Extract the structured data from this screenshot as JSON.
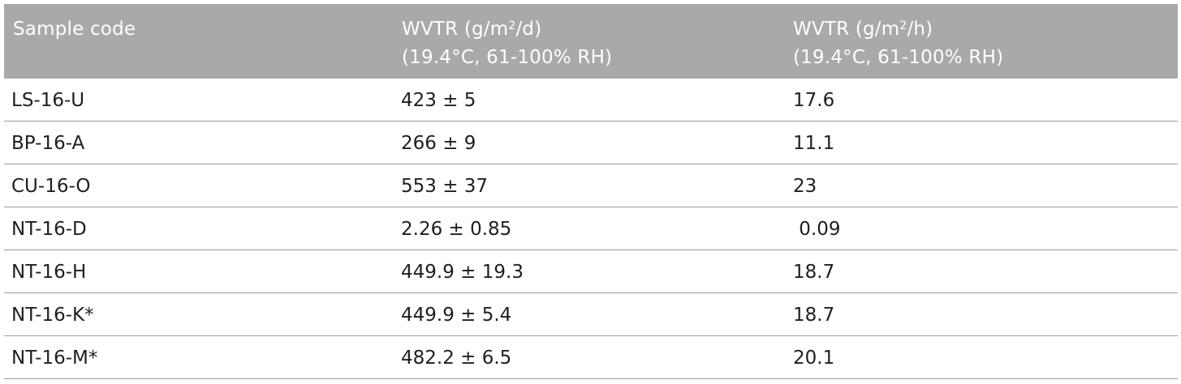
{
  "header": {
    "col1": "Sample code",
    "col2_prefix": "WVTR (g/m",
    "col2_sup": "2",
    "col2_suffix": "/d)",
    "col2_line2": "(19.4°C, 61-100% RH)",
    "col3_prefix": "WVTR (g/m",
    "col3_sup": "2",
    "col3_suffix": "/h)",
    "col3_line2": "(19.4°C, 61-100% RH)"
  },
  "rows": [
    {
      "code": "LS-16-U",
      "wvtr_day": "423 ± 5",
      "wvtr_hour": "17.6"
    },
    {
      "code": "BP-16-A",
      "wvtr_day": "266 ± 9",
      "wvtr_hour": "11.1"
    },
    {
      "code": "CU-16-O",
      "wvtr_day": "553 ± 37",
      "wvtr_hour": "23"
    },
    {
      "code": "NT-16-D",
      "wvtr_day": "2.26 ± 0.85",
      "wvtr_hour": " 0.09"
    },
    {
      "code": "NT-16-H",
      "wvtr_day": "449.9 ± 19.3",
      "wvtr_hour": "18.7"
    },
    {
      "code": "NT-16-K*",
      "wvtr_day": "449.9 ± 5.4",
      "wvtr_hour": "18.7"
    },
    {
      "code": "NT-16-M*",
      "wvtr_day": "482.2 ± 6.5",
      "wvtr_hour": "20.1"
    }
  ]
}
